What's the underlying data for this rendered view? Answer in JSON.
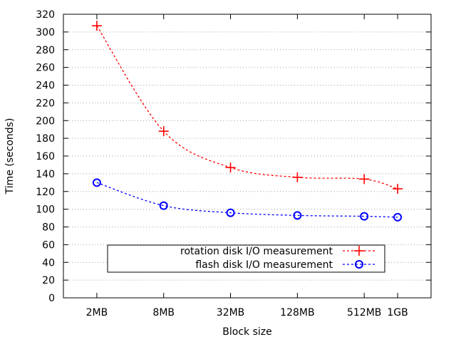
{
  "chart_data": {
    "type": "line",
    "title": "",
    "xlabel": "Block size",
    "ylabel": "Time (seconds)",
    "ylim": [
      0,
      320
    ],
    "yticks": [
      0,
      20,
      40,
      60,
      80,
      100,
      120,
      140,
      160,
      180,
      200,
      220,
      240,
      260,
      280,
      300,
      320
    ],
    "xticks": [
      {
        "label": "2MB",
        "log2": 1
      },
      {
        "label": "8MB",
        "log2": 3
      },
      {
        "label": "32MB",
        "log2": 5
      },
      {
        "label": "128MB",
        "log2": 7
      },
      {
        "label": "512MB",
        "log2": 9
      },
      {
        "label": "1GB",
        "log2": 10
      }
    ],
    "xlim_log2": [
      0,
      11
    ],
    "grid": true,
    "legend_position": "bottom-center",
    "series": [
      {
        "name": "rotation disk I/O measurement",
        "color": "#ff0000",
        "marker": "plus",
        "values": [
          307,
          188,
          147,
          136,
          134,
          123
        ]
      },
      {
        "name": "flash disk I/O measurement",
        "color": "#0000ff",
        "marker": "circle",
        "values": [
          130,
          104,
          96,
          93,
          92,
          91
        ]
      }
    ]
  }
}
